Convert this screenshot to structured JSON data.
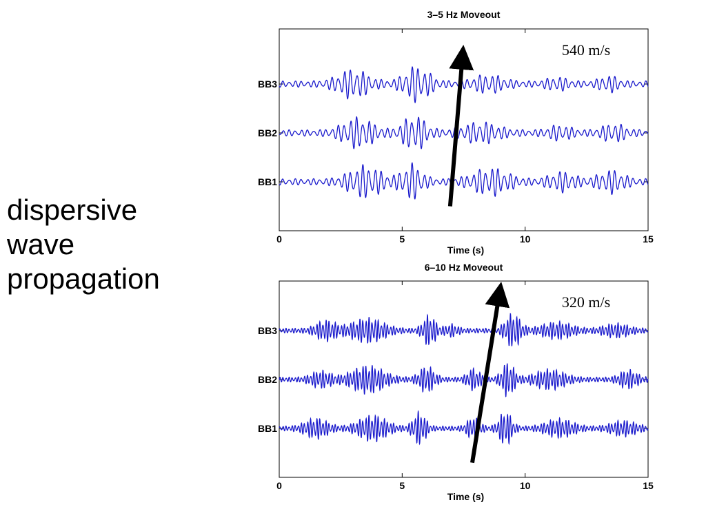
{
  "slide": {
    "lines": [
      "dispersive",
      "wave",
      "propagation"
    ]
  },
  "colors": {
    "trace": "#1a1acc",
    "arrow": "#000000",
    "axis": "#000000",
    "panel_bg": "#ffffff"
  },
  "chart_data": [
    {
      "type": "line",
      "title": "3–5 Hz Moveout",
      "xlabel": "Time (s)",
      "ylabel": "",
      "xlim": [
        0,
        15
      ],
      "xticks": [
        "0",
        "5",
        "10",
        "15"
      ],
      "yticks": [
        "BB1",
        "BB2",
        "BB3"
      ],
      "series": [
        {
          "name": "BB3",
          "offset": 3,
          "packets": [
            [
              3.0,
              1.2,
              0.8
            ],
            [
              5.6,
              1.0,
              1.0
            ],
            [
              8.5,
              1.2,
              0.45
            ],
            [
              11.3,
              0.8,
              0.3
            ],
            [
              13.4,
              0.7,
              0.4
            ]
          ]
        },
        {
          "name": "BB2",
          "offset": 2,
          "packets": [
            [
              3.2,
              1.2,
              0.85
            ],
            [
              5.5,
              0.9,
              1.0
            ],
            [
              8.2,
              1.4,
              0.55
            ],
            [
              11.4,
              0.9,
              0.35
            ],
            [
              13.6,
              0.9,
              0.45
            ]
          ]
        },
        {
          "name": "BB1",
          "offset": 1,
          "packets": [
            [
              3.5,
              1.3,
              0.9
            ],
            [
              5.4,
              0.8,
              1.0
            ],
            [
              8.6,
              1.4,
              0.75
            ],
            [
              11.5,
              1.0,
              0.5
            ],
            [
              13.5,
              1.0,
              0.6
            ]
          ]
        }
      ],
      "dominant_hz": 4,
      "noise": 0.2,
      "annotation": {
        "text": "540 m/s",
        "arrow_from": {
          "x": 6.95,
          "level": 0.5
        },
        "arrow_to": {
          "x": 7.45,
          "level": 3.55
        }
      }
    },
    {
      "type": "line",
      "title": "6–10 Hz Moveout",
      "xlabel": "Time (s)",
      "ylabel": "",
      "xlim": [
        0,
        15
      ],
      "xticks": [
        "0",
        "5",
        "10",
        "15"
      ],
      "yticks": [
        "BB1",
        "BB2",
        "BB3"
      ],
      "series": [
        {
          "name": "BB3",
          "offset": 3,
          "packets": [
            [
              1.9,
              0.8,
              0.55
            ],
            [
              3.6,
              1.3,
              0.7
            ],
            [
              6.1,
              0.5,
              0.9
            ],
            [
              7.0,
              0.5,
              0.3
            ],
            [
              9.5,
              0.6,
              1.0
            ],
            [
              11.3,
              1.2,
              0.45
            ],
            [
              13.7,
              1.0,
              0.35
            ]
          ]
        },
        {
          "name": "BB2",
          "offset": 2,
          "packets": [
            [
              1.7,
              0.8,
              0.45
            ],
            [
              3.6,
              1.3,
              0.8
            ],
            [
              6.0,
              0.6,
              0.75
            ],
            [
              7.9,
              0.5,
              0.6
            ],
            [
              9.3,
              0.5,
              1.0
            ],
            [
              11.0,
              1.2,
              0.55
            ],
            [
              14.2,
              0.7,
              0.5
            ]
          ]
        },
        {
          "name": "BB1",
          "offset": 1,
          "packets": [
            [
              1.5,
              0.9,
              0.55
            ],
            [
              3.8,
              1.1,
              0.75
            ],
            [
              5.7,
              0.5,
              0.95
            ],
            [
              7.9,
              0.5,
              0.6
            ],
            [
              9.2,
              0.5,
              1.0
            ],
            [
              11.4,
              1.1,
              0.5
            ],
            [
              14.0,
              1.0,
              0.4
            ]
          ]
        }
      ],
      "dominant_hz": 8,
      "noise": 0.15,
      "annotation": {
        "text": "320 m/s",
        "arrow_from": {
          "x": 7.85,
          "level": 0.3
        },
        "arrow_to": {
          "x": 8.95,
          "level": 3.75
        }
      }
    }
  ]
}
